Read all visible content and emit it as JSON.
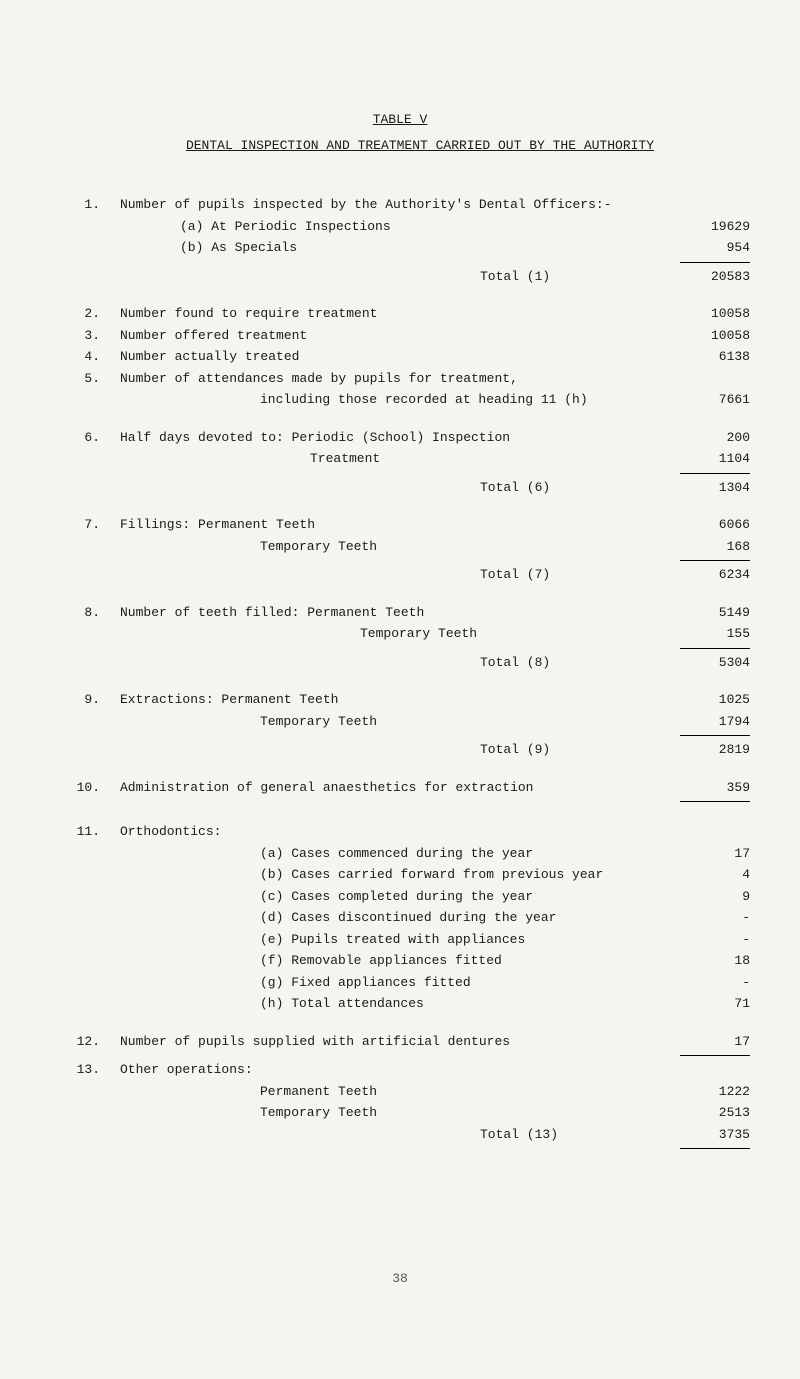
{
  "title": "TABLE V",
  "subtitle": "DENTAL INSPECTION AND TREATMENT CARRIED OUT BY THE AUTHORITY",
  "items": [
    {
      "n": "1.",
      "text": "Number of pupils inspected by the Authority's Dental Officers:-",
      "val": ""
    },
    {
      "n": "",
      "text": "(a)  At Periodic Inspections",
      "val": "19629",
      "cls": "indent-a"
    },
    {
      "n": "",
      "text": "(b)  As Specials",
      "val": "954",
      "cls": "indent-a"
    },
    {
      "n": "",
      "text": "Total   (1)",
      "val": "20583",
      "cls": "total-col",
      "rule": true
    },
    {
      "spacer": true
    },
    {
      "n": "2.",
      "text": "Number found to require treatment",
      "val": "10058"
    },
    {
      "n": "3.",
      "text": "Number offered treatment",
      "val": "10058"
    },
    {
      "n": "4.",
      "text": "Number actually treated",
      "val": "6138"
    },
    {
      "n": "5.",
      "text": "Number of attendances made by pupils for treatment,",
      "val": ""
    },
    {
      "n": "",
      "text": "including those recorded at heading 11 (h)",
      "val": "7661",
      "cls": "indent-c"
    },
    {
      "spacer": true
    },
    {
      "n": "6.",
      "text": "Half days devoted to:   Periodic (School) Inspection",
      "val": "200"
    },
    {
      "n": "",
      "text": "Treatment",
      "val": "1104",
      "cls": "indent-b"
    },
    {
      "n": "",
      "text": "Total   (6)",
      "val": "1304",
      "cls": "total-col",
      "rule": true
    },
    {
      "spacer": true
    },
    {
      "n": "7.",
      "text": "Fillings:        Permanent Teeth",
      "val": "6066"
    },
    {
      "n": "",
      "text": "Temporary Teeth",
      "val": "168",
      "cls": "indent-c"
    },
    {
      "n": "",
      "text": "Total   (7)",
      "val": "6234",
      "cls": "total-col",
      "rule": true
    },
    {
      "spacer": true
    },
    {
      "n": "8.",
      "text": "Number of teeth filled:   Permanent Teeth",
      "val": "5149"
    },
    {
      "n": "",
      "text": "Temporary Teeth",
      "val": "155",
      "cls": "indent-d"
    },
    {
      "n": "",
      "text": "Total   (8)",
      "val": "5304",
      "cls": "total-col",
      "rule": true
    },
    {
      "spacer": true
    },
    {
      "n": "9.",
      "text": "Extractions:     Permanent Teeth",
      "val": "1025"
    },
    {
      "n": "",
      "text": "Temporary Teeth",
      "val": "1794",
      "cls": "indent-c"
    },
    {
      "n": "",
      "text": "Total   (9)",
      "val": "2819",
      "cls": "total-col",
      "rule": true
    },
    {
      "spacer": true
    },
    {
      "n": "10.",
      "text": "Administration of general anaesthetics for extraction",
      "val": "359",
      "rule_after": true
    },
    {
      "spacer": true
    },
    {
      "n": "11.",
      "text": "Orthodontics:",
      "val": ""
    },
    {
      "n": "",
      "text": "(a)  Cases commenced during the year",
      "val": "17",
      "cls": "indent-c"
    },
    {
      "n": "",
      "text": "(b)  Cases carried forward from previous year",
      "val": "4",
      "cls": "indent-c"
    },
    {
      "n": "",
      "text": "(c)  Cases completed during the year",
      "val": "9",
      "cls": "indent-c"
    },
    {
      "n": "",
      "text": "(d)  Cases discontinued during the year",
      "val": "-",
      "cls": "indent-c"
    },
    {
      "n": "",
      "text": "(e)  Pupils treated with appliances",
      "val": "-",
      "cls": "indent-c"
    },
    {
      "n": "",
      "text": "(f)  Removable appliances fitted",
      "val": "18",
      "cls": "indent-c"
    },
    {
      "n": "",
      "text": "(g)  Fixed appliances fitted",
      "val": "-",
      "cls": "indent-c"
    },
    {
      "n": "",
      "text": "(h)  Total attendances",
      "val": "71",
      "cls": "indent-c"
    },
    {
      "spacer": true
    },
    {
      "n": "12.",
      "text": "Number of pupils supplied with artificial dentures",
      "val": "17",
      "rule_after": true
    },
    {
      "n": "13.",
      "text": "Other operations:",
      "val": ""
    },
    {
      "n": "",
      "text": "Permanent Teeth",
      "val": "1222",
      "cls": "indent-c"
    },
    {
      "n": "",
      "text": "Temporary Teeth",
      "val": "2513",
      "cls": "indent-c"
    },
    {
      "n": "",
      "text": "Total   (13)",
      "val": "3735",
      "cls": "total-col",
      "rule_after": true
    }
  ],
  "page_number": "38"
}
